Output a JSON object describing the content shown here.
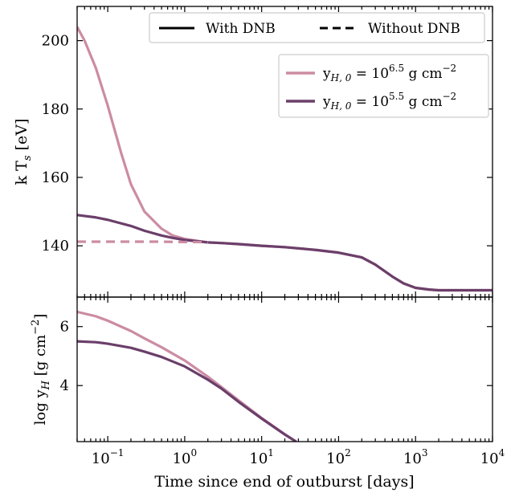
{
  "colors": {
    "thick": "#cc8ca3",
    "thin": "#6b3f6a"
  },
  "chart_data": [
    {
      "type": "line",
      "panel": "top",
      "xscale": "log",
      "xlim": [
        0.04,
        10000
      ],
      "ylim": [
        125,
        210
      ],
      "ylabel": "k T$_s$ [eV]",
      "yticks": [
        140,
        160,
        180,
        200
      ],
      "grid": false,
      "style_legend": {
        "placement": "top",
        "entries": [
          {
            "label": "With DNB",
            "linestyle": "solid"
          },
          {
            "label": "Without DNB",
            "linestyle": "dashed"
          }
        ]
      },
      "series_legend": {
        "placement": "upper-right",
        "entries": [
          {
            "label_prefix": "y",
            "label_sub": "H, 0",
            "label_mid": " = 10",
            "label_sup": "6.5",
            "label_suffix": " g cm",
            "label_sup2": "−2"
          },
          {
            "label_prefix": "y",
            "label_sub": "H, 0",
            "label_mid": " = 10",
            "label_sup": "5.5",
            "label_suffix": " g cm",
            "label_sup2": "−2"
          }
        ]
      },
      "series": [
        {
          "color_key": "thick",
          "linestyle": "solid",
          "x": [
            0.04,
            0.05,
            0.07,
            0.1,
            0.15,
            0.2,
            0.3,
            0.5,
            0.7,
            1,
            1.5,
            2,
            3,
            5,
            10,
            20,
            50,
            100,
            200,
            300,
            500,
            700,
            1000,
            1500,
            2000,
            3000,
            5000,
            10000
          ],
          "y": [
            204,
            200,
            192,
            181,
            167,
            158,
            150,
            145,
            143,
            142,
            141.4,
            141,
            140.8,
            140.5,
            140,
            139.6,
            138.8,
            138,
            136.6,
            134.5,
            131,
            129,
            127.7,
            127.2,
            127,
            127,
            127,
            127
          ]
        },
        {
          "color_key": "thin",
          "linestyle": "solid",
          "x": [
            0.04,
            0.07,
            0.1,
            0.2,
            0.3,
            0.5,
            0.7,
            1,
            1.5,
            2,
            3,
            5,
            10,
            20,
            50,
            100,
            200,
            300,
            500,
            700,
            1000,
            1500,
            2000,
            3000,
            5000,
            10000
          ],
          "y": [
            149,
            148.3,
            147.6,
            145.8,
            144.4,
            143,
            142.3,
            141.7,
            141.3,
            141,
            140.8,
            140.5,
            140,
            139.6,
            138.8,
            138,
            136.6,
            134.5,
            131,
            129,
            127.7,
            127.2,
            127,
            127,
            127,
            127
          ]
        },
        {
          "color_key": "thick",
          "linestyle": "dashed",
          "x": [
            0.04,
            0.1,
            0.2,
            0.5,
            1,
            1.5,
            2
          ],
          "y": [
            141.2,
            141.2,
            141.2,
            141.2,
            141.1,
            141.1,
            141
          ]
        }
      ]
    },
    {
      "type": "line",
      "panel": "bottom",
      "xscale": "log",
      "xlim": [
        0.04,
        10000
      ],
      "ylim": [
        2.1,
        7.0
      ],
      "xlabel": "Time since end of outburst [days]",
      "ylabel": "log y$_H$ [g cm$^{-2}$]",
      "xticks": [
        {
          "base": "10",
          "exp": "−1",
          "value": 0.1
        },
        {
          "base": "10",
          "exp": "0",
          "value": 1
        },
        {
          "base": "10",
          "exp": "1",
          "value": 10
        },
        {
          "base": "10",
          "exp": "2",
          "value": 100
        },
        {
          "base": "10",
          "exp": "3",
          "value": 1000
        },
        {
          "base": "10",
          "exp": "4",
          "value": 10000
        }
      ],
      "yticks": [
        4,
        6
      ],
      "grid": false,
      "series": [
        {
          "color_key": "thick",
          "linestyle": "solid",
          "x": [
            0.04,
            0.07,
            0.1,
            0.2,
            0.3,
            0.5,
            1,
            2,
            3,
            5,
            10,
            20,
            28
          ],
          "y": [
            6.5,
            6.35,
            6.2,
            5.85,
            5.6,
            5.3,
            4.85,
            4.3,
            3.95,
            3.5,
            2.9,
            2.35,
            2.1
          ]
        },
        {
          "color_key": "thin",
          "linestyle": "solid",
          "x": [
            0.04,
            0.07,
            0.1,
            0.2,
            0.3,
            0.5,
            1,
            2,
            3,
            5,
            10,
            20,
            28
          ],
          "y": [
            5.5,
            5.47,
            5.42,
            5.28,
            5.15,
            4.97,
            4.65,
            4.2,
            3.9,
            3.45,
            2.88,
            2.34,
            2.1
          ]
        }
      ]
    }
  ]
}
